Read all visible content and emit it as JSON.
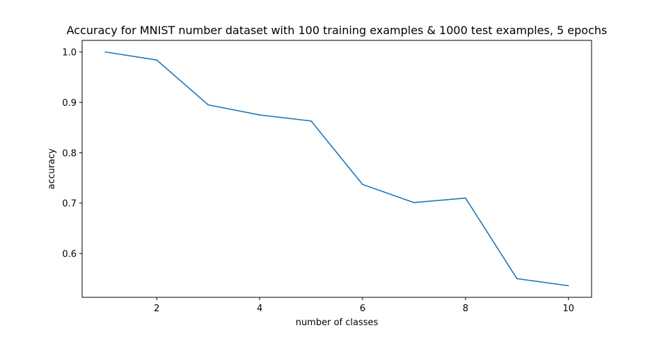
{
  "chart_data": {
    "type": "line",
    "title": "Accuracy for MNIST number dataset with 100 training examples & 1000 test examples, 5 epochs",
    "xlabel": "number of classes",
    "ylabel": "accuracy",
    "x": [
      1,
      2,
      3,
      4,
      5,
      6,
      7,
      8,
      9,
      10
    ],
    "series": [
      {
        "values": [
          1.0,
          0.984,
          0.895,
          0.875,
          0.863,
          0.737,
          0.701,
          0.71,
          0.55,
          0.536
        ],
        "color": "#1f77b4"
      }
    ],
    "xlim": [
      0.55,
      10.45
    ],
    "ylim": [
      0.513,
      1.023
    ],
    "xticks": [
      2,
      4,
      6,
      8,
      10
    ],
    "xtick_labels": [
      "2",
      "4",
      "6",
      "8",
      "10"
    ],
    "yticks": [
      0.6,
      0.7,
      0.8,
      0.9,
      1.0
    ],
    "ytick_labels": [
      "0.6",
      "0.7",
      "0.8",
      "0.9",
      "1.0"
    ],
    "grid": false,
    "legend": "none"
  }
}
